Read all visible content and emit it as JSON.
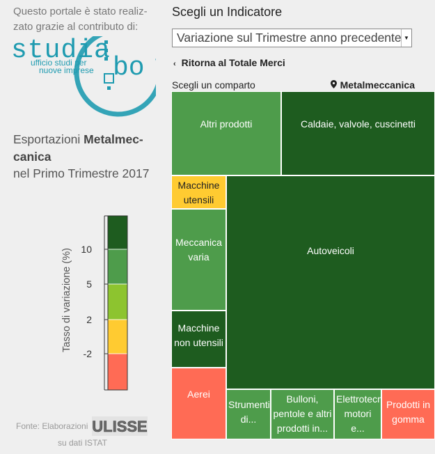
{
  "intro": {
    "line1": "Questo portale è stato realiz-",
    "line2": "zato grazie al contributo di:"
  },
  "logo": {
    "name": "studia",
    "suffix": "bo",
    "tagline1": "ufficio studi per",
    "tagline2": "nuove imprese",
    "color": "#1f9bb0"
  },
  "heading": {
    "prefix": "Esportazioni ",
    "bold1": "Metalmec-",
    "bold2": "canica",
    "line3": "nel Primo Trimestre 2017"
  },
  "legend": {
    "axis_label": "Tasso di variazione (%)",
    "ticks": [
      "10",
      "5",
      "2",
      "-2"
    ],
    "bands": [
      {
        "color": "#1e5c1f"
      },
      {
        "color": "#4e9c4b"
      },
      {
        "color": "#8dc42f"
      },
      {
        "color": "#ffcb31"
      },
      {
        "color": "#ff6b55"
      }
    ]
  },
  "source": {
    "line1": "Fonte: Elaborazioni",
    "brand": "ULISSE",
    "line2": "su dati ISTAT"
  },
  "panel": {
    "title": "Scegli un Indicatore",
    "select_value": "Variazione sul Trimestre anno precedente",
    "back_label": "Ritorna al Totale Merci",
    "comparto_label": "Scegli un comparto",
    "current_sector": "Metalmeccanica"
  },
  "treemap": {
    "cells": [
      {
        "id": "altri-prodotti",
        "label": "Altri prodotti",
        "color": "#4e9c4b"
      },
      {
        "id": "caldaie",
        "label": "Caldaie, valvole, cuscinetti",
        "color": "#1e5c1f"
      },
      {
        "id": "macchine-utensili",
        "label": "Macchine utensili",
        "color": "#ffcb31"
      },
      {
        "id": "meccanica-varia",
        "label": "Meccanica varia",
        "color": "#4e9c4b"
      },
      {
        "id": "autoveicoli",
        "label": "Autoveicoli",
        "color": "#1e5c1f"
      },
      {
        "id": "macchine-non-utensili",
        "label": "Macchine non utensili",
        "color": "#1e5c1f"
      },
      {
        "id": "aerei",
        "label": "Aerei",
        "color": "#ff6b55"
      },
      {
        "id": "strumenti",
        "label": "Strumenti di...",
        "color": "#4e9c4b"
      },
      {
        "id": "bulloni",
        "label": "Bulloni, pentole e altri prodotti in...",
        "color": "#4e9c4b"
      },
      {
        "id": "elettrotecnica",
        "label": "Elettrotecnica: motori e...",
        "color": "#4e9c4b"
      },
      {
        "id": "prodotti-gomma",
        "label": "Prodotti in gomma",
        "color": "#ff6b55"
      }
    ]
  }
}
